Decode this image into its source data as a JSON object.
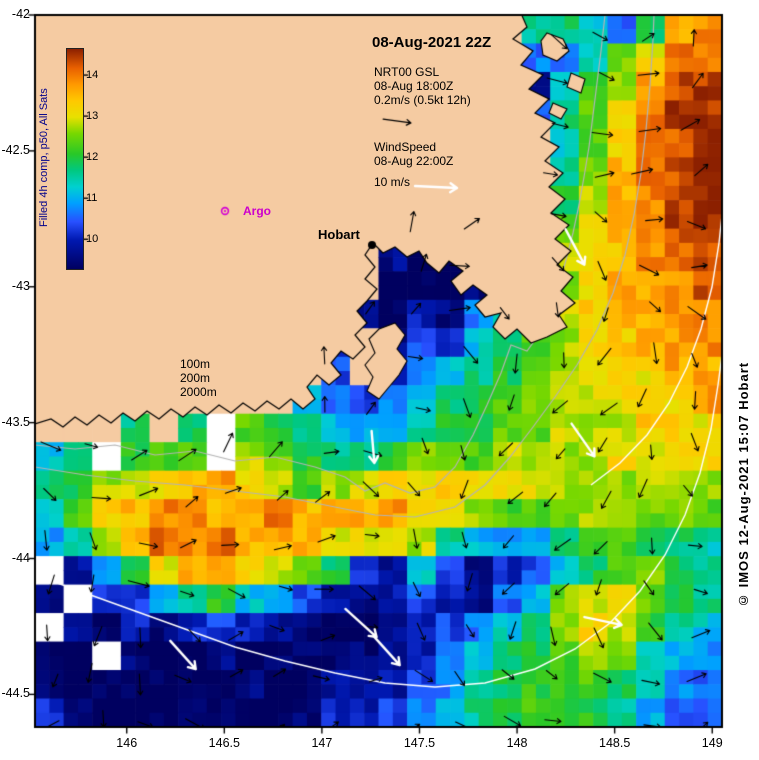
{
  "title": "08-Aug-2021 22Z",
  "legend_current": {
    "line1": "NRT00 GSL",
    "line2": "08-Aug 18:00Z",
    "line3": "0.2m/s (0.5kt 12h)"
  },
  "legend_wind": {
    "line1": "WindSpeed",
    "line2": "08-Aug 22:00Z",
    "line3": "10 m/s"
  },
  "colorbar": {
    "label": "Filled 4h comp, p50, All Sats",
    "ticks": [
      "14",
      "13",
      "12",
      "11",
      "10"
    ]
  },
  "depth_legend": {
    "items": [
      "100m",
      "200m",
      "2000m"
    ]
  },
  "markers": {
    "argo_label": "Argo",
    "hobart_label": "Hobart"
  },
  "axes": {
    "x_ticks": [
      "146",
      "146.5",
      "147",
      "147.5",
      "148",
      "148.5",
      "149"
    ],
    "y_ticks": [
      "-42",
      "-42.5",
      "-43",
      "-43.5",
      "-44",
      "-44.5"
    ]
  },
  "copyright": "© IMOS 12-Aug-2021 15:07 Hobart",
  "colors": {
    "land": "#f5cba2",
    "coastline": "#000000",
    "argo_marker": "#d400d4",
    "hobart_marker": "#000000",
    "contour_minor": "#b4b4b4",
    "contour_major": "#ffffff",
    "arrow_current": "#000000",
    "arrow_wind": "#ffffff"
  },
  "chart_data": {
    "type": "heatmap",
    "title": "08-Aug-2021 22Z",
    "value_label": "Filled 4h comp, p50, All Sats (sea surface temperature, °C)",
    "lon_range": [
      145.53,
      149.05
    ],
    "lat_range": [
      -44.62,
      -42.0
    ],
    "x_tick_values": [
      146,
      146.5,
      147,
      147.5,
      148,
      148.5,
      149
    ],
    "y_tick_values": [
      -42,
      -42.5,
      -43,
      -43.5,
      -44,
      -44.5
    ],
    "colorbar_range": [
      9.3,
      14.66
    ],
    "colorbar_ticks": [
      10,
      11,
      12,
      13,
      14
    ],
    "char_scale": {
      "chars": "0123456789ABCDE",
      "base": 9.2,
      "step": 0.4,
      "land": "L",
      "nodata": "W"
    },
    "colormap": [
      [
        9.3,
        "#000060"
      ],
      [
        10.0,
        "#0018b0"
      ],
      [
        10.45,
        "#2850ff"
      ],
      [
        10.9,
        "#00a0ff"
      ],
      [
        11.3,
        "#00d0d0"
      ],
      [
        11.7,
        "#00c880"
      ],
      [
        12.1,
        "#28c828"
      ],
      [
        12.6,
        "#78d800"
      ],
      [
        13.0,
        "#e8e000"
      ],
      [
        13.4,
        "#ffc800"
      ],
      [
        13.8,
        "#ff9800"
      ],
      [
        14.2,
        "#e86000"
      ],
      [
        14.66,
        "#8c2000"
      ]
    ],
    "grid": [
      "LLLLLLLLLLLLLLLLL66537BC",
      "LLLLLLLLLLLLLLLLL4368ACC",
      "LLLLLLLLLLLLLLLLL2579BDD",
      "LLLLLLLLLLLLLLLLL468ACDD",
      "LLLLLLLLLLLLLLLLLL58ACDE",
      "LLLLLLLLLLLLLLLLLL69BCDE",
      "LLLLLLLLLLLLLLLLLL79BCDE",
      "LLLLLLLLLLLLL2L1LL8ABCDD",
      "LLLLLLLLLLLL1010LL9ABCCD",
      "LLLLLLLLLLLL00013L8ABBCD",
      "LLLLLLLLLLL10214579ABBCC",
      "LLLLLLLLLL2L1325689AABBC",
      "LLLLLLLLLL3L24567899AABB",
      "LLLLLLLLL54345678899AAAB",
      "LLL6L7W87654567788999AAA",
      "56W788W9876678889999AAAA",
      "6799ABBA9899AABAA9999999",
      "58ABCCBBCBBBBAA988899888",
      "469BCCCBBBAAA96545678766",
      "W247ABBA9872153123578876",
      "1W235675432123213589A876",
      "W102123211001234569A9765",
      "00W100100001124567898654",
      "100000010012234677887543",
      "210000000122345678876433"
    ]
  }
}
